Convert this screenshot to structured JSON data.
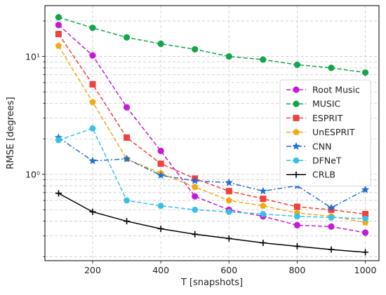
{
  "chart_data": {
    "type": "line",
    "title": "",
    "xlabel": "T [snapshots]",
    "ylabel": "RMSE [degrees]",
    "x": [
      100,
      200,
      300,
      400,
      500,
      600,
      700,
      800,
      900,
      1000
    ],
    "xlim": [
      60,
      1040
    ],
    "xticks": [
      200,
      400,
      600,
      800,
      1000
    ],
    "yscale": "log",
    "ylim": [
      0.185,
      27
    ],
    "yticks": [
      1,
      10
    ],
    "ytick_labels": [
      "10⁰",
      "10¹"
    ],
    "grid": true,
    "legend_position": "center-right",
    "series": [
      {
        "name": "Root Music",
        "color": "#c51ad6",
        "linestyle": "dashed",
        "marker": "circle",
        "values": [
          18.5,
          10.2,
          3.7,
          1.58,
          0.65,
          0.5,
          0.44,
          0.37,
          0.36,
          0.32
        ]
      },
      {
        "name": "MUSIC",
        "color": "#13a64a",
        "linestyle": "dashed",
        "marker": "circle",
        "values": [
          21.5,
          17.5,
          14.5,
          12.8,
          11.5,
          10.0,
          9.4,
          8.5,
          8.0,
          7.3
        ]
      },
      {
        "name": "ESPRIT",
        "color": "#f0413d",
        "linestyle": "dashed",
        "marker": "square",
        "values": [
          15.5,
          5.8,
          2.05,
          1.23,
          0.92,
          0.72,
          0.62,
          0.53,
          0.5,
          0.46
        ]
      },
      {
        "name": "UnESPRIT",
        "color": "#f5a811",
        "linestyle": "dashed",
        "marker": "pentagon",
        "values": [
          12.3,
          4.1,
          1.35,
          1.02,
          0.78,
          0.6,
          0.54,
          0.47,
          0.44,
          0.39
        ]
      },
      {
        "name": "CNN",
        "color": "#1f6fd1",
        "linestyle": "dashdot",
        "marker": "star",
        "values": [
          2.05,
          1.3,
          1.35,
          0.98,
          0.88,
          0.85,
          0.72,
          0.8,
          0.52,
          0.74
        ]
      },
      {
        "name": "DFNeT",
        "color": "#37c0ea",
        "linestyle": "dashed",
        "marker": "hexagon",
        "values": [
          1.95,
          2.45,
          0.6,
          0.54,
          0.5,
          0.48,
          0.46,
          0.44,
          0.43,
          0.42
        ]
      },
      {
        "name": "CRLB",
        "color": "#000000",
        "linestyle": "solid",
        "marker": "plus",
        "values": [
          0.69,
          0.48,
          0.4,
          0.345,
          0.31,
          0.285,
          0.262,
          0.245,
          0.23,
          0.218
        ]
      }
    ]
  }
}
